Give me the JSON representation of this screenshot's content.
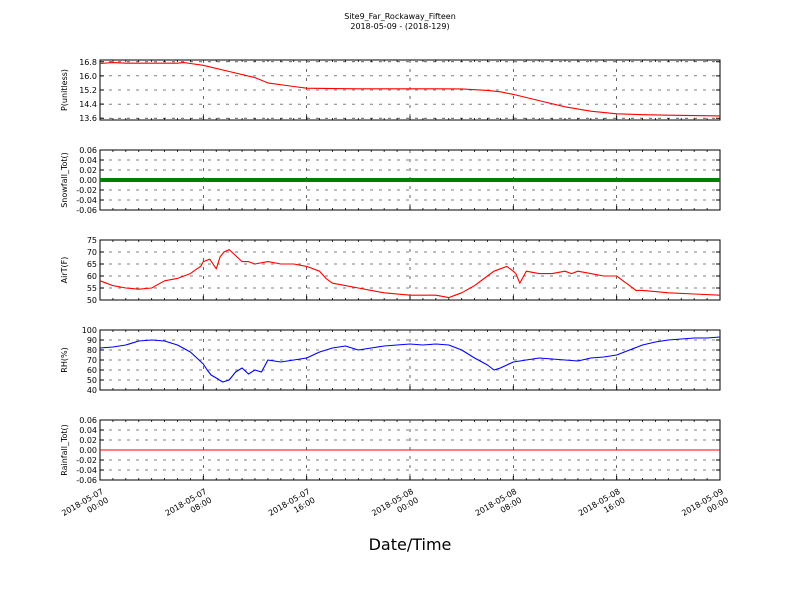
{
  "figure": {
    "title_line1": "Site9_Far_Rockaway_Fifteen",
    "title_line2": "2018-05-09 - (2018-129)",
    "xlabel": "Date/Time"
  },
  "chart_data": {
    "type": "line",
    "x_ticks": [
      {
        "line1": "2018-05-07",
        "line2": "00:00"
      },
      {
        "line1": "2018-05-07",
        "line2": "08:00"
      },
      {
        "line1": "2018-05-07",
        "line2": "16:00"
      },
      {
        "line1": "2018-05-08",
        "line2": "00:00"
      },
      {
        "line1": "2018-05-08",
        "line2": "08:00"
      },
      {
        "line1": "2018-05-08",
        "line2": "16:00"
      },
      {
        "line1": "2018-05-09",
        "line2": "00:00"
      }
    ],
    "x_range_hours": [
      0,
      48
    ],
    "grid": true,
    "panels": [
      {
        "ylabel": "P(unitless)",
        "ylim": [
          13.5,
          16.9
        ],
        "yticks": [
          "16.8",
          "16.0",
          "15.2",
          "14.4",
          "13.6"
        ],
        "ytick_values": [
          16.8,
          16.0,
          15.2,
          14.4,
          13.6
        ],
        "color": "#ff0000",
        "series": {
          "x": [
            0,
            1,
            2,
            4,
            6,
            6.5,
            7,
            8,
            10,
            12,
            13,
            15,
            16,
            18,
            20,
            22,
            24,
            26,
            28,
            30,
            31,
            32,
            34,
            36,
            38,
            40,
            42,
            44,
            46,
            48
          ],
          "y": [
            16.7,
            16.75,
            16.72,
            16.72,
            16.72,
            16.75,
            16.7,
            16.6,
            16.25,
            15.9,
            15.6,
            15.4,
            15.3,
            15.28,
            15.27,
            15.27,
            15.27,
            15.27,
            15.26,
            15.18,
            15.1,
            14.95,
            14.6,
            14.25,
            14.0,
            13.85,
            13.8,
            13.77,
            13.75,
            13.73
          ]
        }
      },
      {
        "ylabel": "Snowfall_Tot()",
        "ylim": [
          -0.06,
          0.06
        ],
        "yticks": [
          "0.06",
          "0.04",
          "0.02",
          "0.00",
          "-0.02",
          "-0.04",
          "-0.06"
        ],
        "ytick_values": [
          0.06,
          0.04,
          0.02,
          0.0,
          -0.02,
          -0.04,
          -0.06
        ],
        "color": "#008000",
        "style": "thick",
        "series": {
          "x": [
            0,
            48
          ],
          "y": [
            0,
            0
          ]
        }
      },
      {
        "ylabel": "AirT(F)",
        "ylim": [
          50,
          75
        ],
        "yticks": [
          "75",
          "70",
          "65",
          "60",
          "55",
          "50"
        ],
        "ytick_values": [
          75,
          70,
          65,
          60,
          55,
          50
        ],
        "color": "#ff0000",
        "series": {
          "x": [
            0,
            0.5,
            1,
            2,
            3,
            4,
            5,
            6,
            6.5,
            7,
            7.5,
            7.8,
            8,
            8.5,
            9,
            9.3,
            9.6,
            10,
            11,
            11.5,
            12,
            13,
            14,
            15,
            16,
            17,
            17.5,
            18,
            19,
            20,
            21,
            22,
            24,
            26,
            27,
            27.5,
            28,
            29,
            30,
            30.5,
            31,
            31.5,
            32,
            32.2,
            32.5,
            33,
            34,
            35,
            36,
            36.5,
            37,
            38,
            39,
            40,
            40.5,
            41,
            41.5,
            42,
            43,
            44,
            46,
            48
          ],
          "y": [
            58,
            57,
            56,
            55,
            54.5,
            55,
            58,
            59,
            60,
            61,
            63,
            64,
            66,
            67,
            63,
            68,
            70,
            71,
            66,
            66,
            65,
            66,
            65,
            65,
            64,
            62,
            59,
            57,
            56,
            55,
            54,
            53,
            52,
            52,
            51,
            52,
            53,
            56,
            60,
            62,
            63,
            64,
            62,
            61,
            57,
            62,
            61,
            61,
            62,
            61,
            62,
            61,
            60,
            60,
            58,
            56,
            54,
            54,
            53.5,
            53,
            52.5,
            52
          ]
        }
      },
      {
        "ylabel": "RH(%)",
        "ylim": [
          40,
          100
        ],
        "yticks": [
          "100",
          "90",
          "80",
          "70",
          "60",
          "50",
          "40"
        ],
        "ytick_values": [
          100,
          90,
          80,
          70,
          60,
          50,
          40
        ],
        "color": "#0000ff",
        "series": {
          "x": [
            0,
            1,
            2,
            3,
            4,
            5,
            6,
            7,
            7.5,
            8,
            8.3,
            8.6,
            9,
            9.5,
            10,
            10.5,
            11,
            11.5,
            12,
            12.5,
            13,
            14,
            15,
            16,
            17,
            18,
            19,
            20,
            21,
            22,
            23,
            24,
            25,
            26,
            27,
            28,
            29,
            30,
            30.5,
            31,
            32,
            33,
            34,
            35,
            36,
            37,
            38,
            39,
            40,
            41,
            42,
            43,
            44,
            45,
            46,
            47,
            48
          ],
          "y": [
            82,
            83,
            85,
            89,
            90,
            89,
            85,
            78,
            72,
            66,
            60,
            55,
            52,
            48,
            50,
            58,
            62,
            56,
            60,
            58,
            70,
            68,
            70,
            72,
            78,
            82,
            84,
            80,
            82,
            84,
            85,
            86,
            85,
            86,
            85,
            80,
            72,
            65,
            60,
            62,
            68,
            70,
            72,
            71,
            70,
            69,
            72,
            73,
            75,
            80,
            85,
            88,
            90,
            91,
            92,
            92,
            93
          ]
        }
      },
      {
        "ylabel": "Rainfall_Tot()",
        "ylim": [
          -0.06,
          0.06
        ],
        "yticks": [
          "0.06",
          "0.04",
          "0.02",
          "0.00",
          "-0.02",
          "-0.04",
          "-0.06"
        ],
        "ytick_values": [
          0.06,
          0.04,
          0.02,
          0.0,
          -0.02,
          -0.04,
          -0.06
        ],
        "color": "#ff0000",
        "series": {
          "x": [
            0,
            48
          ],
          "y": [
            0,
            0
          ]
        }
      }
    ]
  }
}
